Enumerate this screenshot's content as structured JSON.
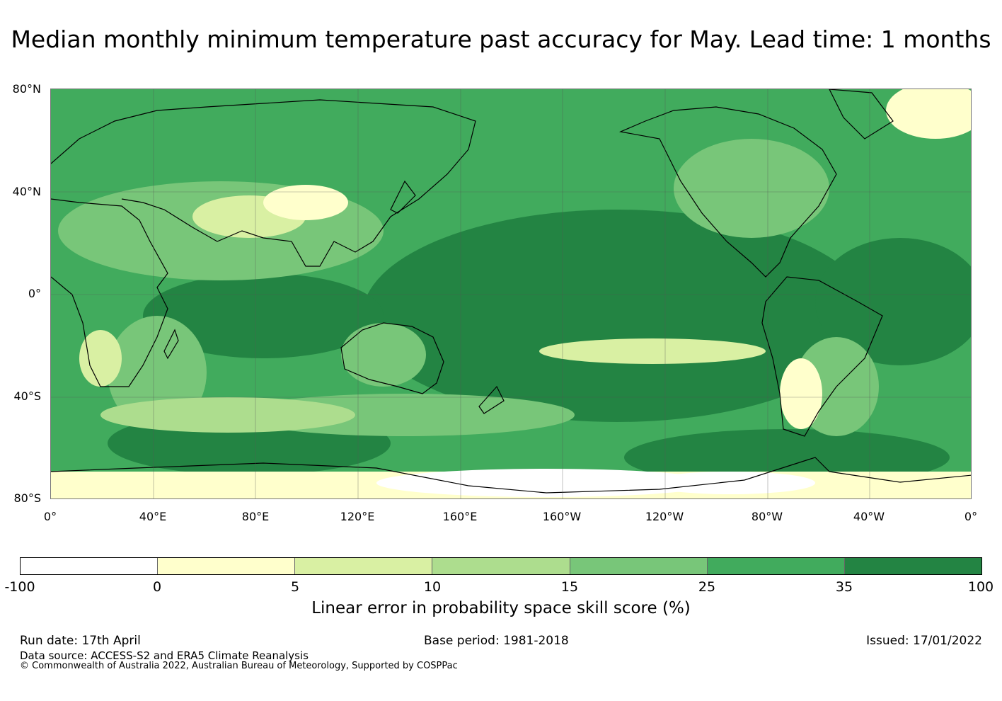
{
  "title": "Median monthly minimum temperature past accuracy for May. Lead time: 1 months",
  "map": {
    "lat_labels": [
      "80°N",
      "40°N",
      "0°",
      "40°S",
      "80°S"
    ],
    "lon_labels": [
      "0°",
      "40°E",
      "80°E",
      "120°E",
      "160°E",
      "160°W",
      "120°W",
      "80°W",
      "40°W",
      "0°"
    ]
  },
  "colorbar": {
    "boundaries": [
      "-100",
      "0",
      "5",
      "10",
      "15",
      "25",
      "35",
      "100"
    ],
    "colors": [
      "#ffffff",
      "#ffffcc",
      "#d9f0a3",
      "#addd8e",
      "#78c679",
      "#41ab5d",
      "#238443"
    ],
    "title": "Linear error in probability space skill score (%)"
  },
  "footer": {
    "run_date": "Run date: 17th April",
    "base_period": "Base period: 1981-2018",
    "issued": "Issued: 17/01/2022",
    "data_source": "Data source: ACCESS-S2 and ERA5 Climate Reanalysis",
    "copyright": "© Commonwealth of Australia 2022, Australian Bureau of Meteorology, Supported by COSPPac"
  }
}
